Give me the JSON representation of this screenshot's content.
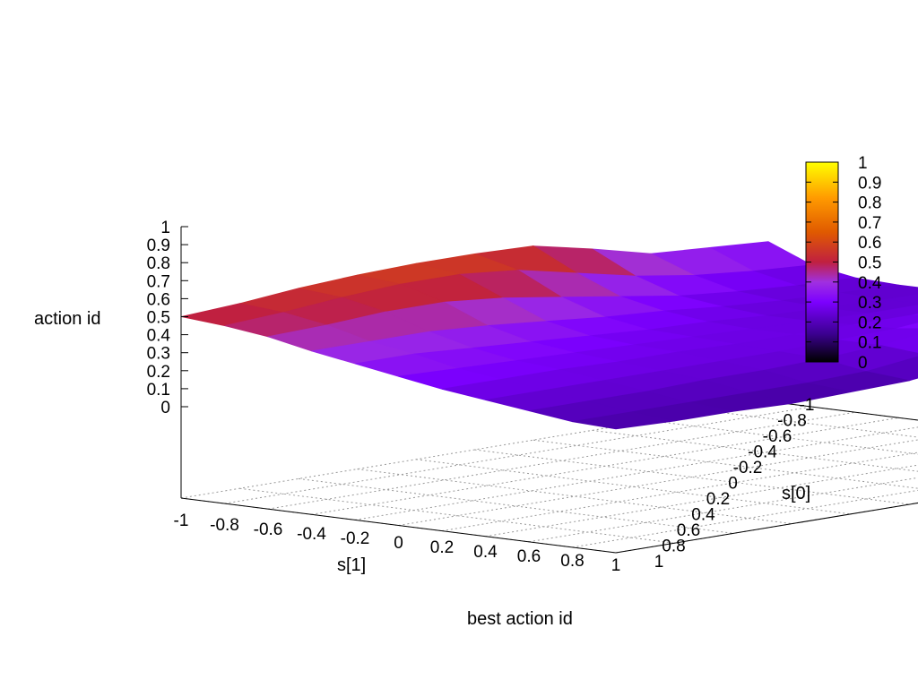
{
  "chart_data": {
    "type": "surface",
    "title": "best action id",
    "zlabel": "action id",
    "xlabel": "s[1]",
    "ylabel": "s[0]",
    "xlim": [
      -1,
      1
    ],
    "ylim": [
      -1,
      1
    ],
    "zlim": [
      0,
      1
    ],
    "grid": true,
    "legend": "colorbar right",
    "palette": [
      "#000000",
      "#3b0090",
      "#7c00ff",
      "#a030e0",
      "#c02040",
      "#e05a00",
      "#ff9a00",
      "#ffff00"
    ],
    "x_ticks": [
      "-1",
      "-0.8",
      "-0.6",
      "-0.4",
      "-0.2",
      "0",
      "0.2",
      "0.4",
      "0.6",
      "0.8",
      "1"
    ],
    "y_ticks": [
      "-1",
      "-0.8",
      "-0.6",
      "-0.4",
      "-0.2",
      "0",
      "0.2",
      "0.4",
      "0.6",
      "0.8",
      "1"
    ],
    "z_ticks": [
      "0",
      "0.1",
      "0.2",
      "0.3",
      "0.4",
      "0.5",
      "0.6",
      "0.7",
      "0.8",
      "0.9",
      "1"
    ],
    "cb_ticks": [
      "0",
      "0.1",
      "0.2",
      "0.3",
      "0.4",
      "0.5",
      "0.6",
      "0.7",
      "0.8",
      "0.9",
      "1"
    ],
    "grid_x": [
      -1,
      -0.8,
      -0.6,
      -0.4,
      -0.2,
      0,
      0.2,
      0.4,
      0.6,
      0.8,
      1
    ],
    "grid_y": [
      -1,
      -0.8,
      -0.6,
      -0.4,
      -0.2,
      0,
      0.2,
      0.4,
      0.6,
      0.8,
      1
    ],
    "z": [
      [
        0.5,
        0.52,
        0.55,
        0.57,
        0.58,
        0.58,
        0.57,
        0.5,
        0.42,
        0.4,
        0.38
      ],
      [
        0.48,
        0.5,
        0.53,
        0.55,
        0.55,
        0.52,
        0.45,
        0.38,
        0.33,
        0.3,
        0.28
      ],
      [
        0.45,
        0.46,
        0.48,
        0.48,
        0.45,
        0.4,
        0.35,
        0.3,
        0.27,
        0.25,
        0.24
      ],
      [
        0.4,
        0.4,
        0.4,
        0.38,
        0.35,
        0.32,
        0.3,
        0.27,
        0.25,
        0.24,
        0.23
      ],
      [
        0.36,
        0.36,
        0.34,
        0.32,
        0.3,
        0.28,
        0.27,
        0.25,
        0.24,
        0.23,
        0.23
      ],
      [
        0.32,
        0.31,
        0.3,
        0.29,
        0.28,
        0.27,
        0.26,
        0.25,
        0.24,
        0.24,
        0.25
      ],
      [
        0.28,
        0.28,
        0.28,
        0.27,
        0.27,
        0.26,
        0.26,
        0.26,
        0.26,
        0.27,
        0.3
      ],
      [
        0.25,
        0.25,
        0.25,
        0.25,
        0.25,
        0.25,
        0.26,
        0.27,
        0.3,
        0.34,
        0.4
      ],
      [
        0.22,
        0.22,
        0.22,
        0.23,
        0.23,
        0.24,
        0.26,
        0.3,
        0.36,
        0.42,
        0.5
      ],
      [
        0.19,
        0.19,
        0.19,
        0.19,
        0.19,
        0.2,
        0.24,
        0.3,
        0.4,
        0.5,
        0.58
      ],
      [
        0.18,
        0.17,
        0.17,
        0.16,
        0.17,
        0.18,
        0.22,
        0.3,
        0.42,
        0.55,
        0.62
      ]
    ]
  }
}
